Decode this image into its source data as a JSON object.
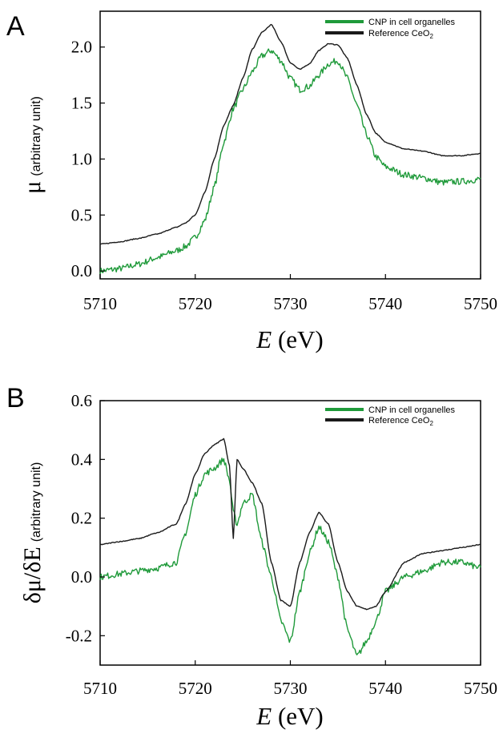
{
  "chart_data": [
    {
      "panel": "A",
      "type": "line",
      "xlabel_var": "E",
      "xlabel_unit": " (eV)",
      "ylabel_main": "μ",
      "ylabel_sub": "(arbitrary unit)",
      "xlim": [
        5710,
        5750
      ],
      "ylim": [
        -0.07,
        2.32
      ],
      "xticks": [
        "5710",
        "5720",
        "5730",
        "5740",
        "5750"
      ],
      "yticks": [
        "0.0",
        "0.5",
        "1.0",
        "1.5",
        "2.0"
      ],
      "legend_position": "top-right",
      "series": [
        {
          "name": "CNP in cell organelles",
          "color": "#1f9a3a",
          "noisy": true,
          "x": [
            5710,
            5712,
            5714,
            5716,
            5718,
            5719,
            5720,
            5721,
            5722,
            5723,
            5724,
            5725,
            5726,
            5727,
            5728,
            5729,
            5730,
            5731,
            5732,
            5733,
            5734,
            5735,
            5736,
            5737,
            5738,
            5739,
            5740,
            5742,
            5744,
            5746,
            5748,
            5750
          ],
          "y": [
            0.0,
            0.02,
            0.06,
            0.12,
            0.18,
            0.22,
            0.3,
            0.45,
            0.75,
            1.15,
            1.45,
            1.62,
            1.78,
            1.92,
            1.97,
            1.88,
            1.72,
            1.62,
            1.65,
            1.75,
            1.85,
            1.88,
            1.72,
            1.48,
            1.22,
            1.02,
            0.93,
            0.86,
            0.83,
            0.79,
            0.8,
            0.82
          ]
        },
        {
          "name": "Reference CeO2",
          "color": "#1a1a1a",
          "noisy": false,
          "x": [
            5710,
            5712,
            5714,
            5716,
            5718,
            5719,
            5720,
            5721,
            5722,
            5723,
            5724,
            5725,
            5726,
            5727,
            5728,
            5729,
            5730,
            5731,
            5732,
            5733,
            5734,
            5735,
            5736,
            5737,
            5738,
            5739,
            5740,
            5742,
            5744,
            5746,
            5748,
            5750
          ],
          "y": [
            0.24,
            0.26,
            0.29,
            0.33,
            0.39,
            0.43,
            0.5,
            0.7,
            1.0,
            1.3,
            1.48,
            1.72,
            1.98,
            2.13,
            2.2,
            2.05,
            1.86,
            1.8,
            1.85,
            1.97,
            2.03,
            2.02,
            1.9,
            1.66,
            1.4,
            1.23,
            1.15,
            1.09,
            1.07,
            1.03,
            1.03,
            1.05
          ]
        }
      ]
    },
    {
      "panel": "B",
      "type": "line",
      "xlabel_var": "E",
      "xlabel_unit": " (eV)",
      "ylabel_main": "δμ/δE",
      "ylabel_sub": "(arbitrary unit)",
      "xlim": [
        5710,
        5750
      ],
      "ylim": [
        -0.3,
        0.6
      ],
      "xticks": [
        "5710",
        "5720",
        "5730",
        "5740",
        "5750"
      ],
      "yticks": [
        "-0.2",
        "0.0",
        "0.2",
        "0.4",
        "0.6"
      ],
      "legend_position": "top-right",
      "series": [
        {
          "name": "CNP in cell organelles",
          "color": "#1f9a3a",
          "noisy": true,
          "x": [
            5710,
            5712,
            5714,
            5716,
            5718,
            5719,
            5720,
            5721,
            5722,
            5723,
            5723.6,
            5724,
            5724.4,
            5725,
            5726,
            5727,
            5728,
            5729,
            5730,
            5731,
            5732,
            5733,
            5734,
            5735,
            5736,
            5737,
            5738,
            5739,
            5740,
            5742,
            5744,
            5746,
            5748,
            5750
          ],
          "y": [
            0.0,
            0.01,
            0.02,
            0.03,
            0.05,
            0.15,
            0.28,
            0.35,
            0.37,
            0.4,
            0.33,
            0.22,
            0.18,
            0.25,
            0.28,
            0.12,
            0.0,
            -0.15,
            -0.22,
            -0.05,
            0.08,
            0.17,
            0.12,
            0.0,
            -0.18,
            -0.27,
            -0.22,
            -0.15,
            -0.05,
            0.0,
            0.02,
            0.05,
            0.05,
            0.03
          ]
        },
        {
          "name": "Reference CeO2",
          "color": "#1a1a1a",
          "noisy": false,
          "x": [
            5710,
            5712,
            5714,
            5716,
            5718,
            5719,
            5720,
            5721,
            5722,
            5723,
            5723.6,
            5724,
            5724.4,
            5725,
            5726,
            5727,
            5728,
            5729,
            5730,
            5731,
            5732,
            5733,
            5734,
            5735,
            5736,
            5737,
            5738,
            5739,
            5740,
            5742,
            5744,
            5746,
            5748,
            5750
          ],
          "y": [
            0.11,
            0.12,
            0.13,
            0.15,
            0.18,
            0.25,
            0.35,
            0.42,
            0.45,
            0.47,
            0.38,
            0.13,
            0.4,
            0.37,
            0.32,
            0.25,
            0.05,
            -0.08,
            -0.1,
            0.05,
            0.15,
            0.22,
            0.18,
            0.05,
            -0.05,
            -0.1,
            -0.11,
            -0.1,
            -0.05,
            0.05,
            0.08,
            0.09,
            0.1,
            0.11
          ]
        }
      ]
    }
  ]
}
